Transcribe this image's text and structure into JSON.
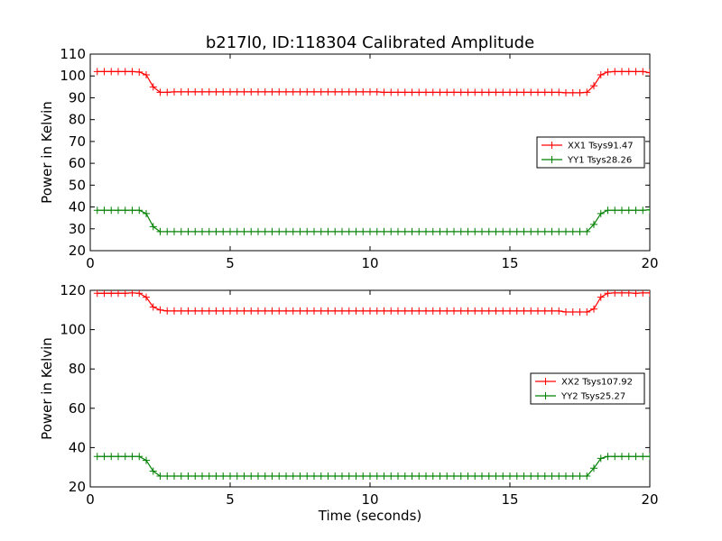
{
  "chart_data": [
    {
      "type": "line",
      "title": "b217l0, ID:118304 Calibrated Amplitude",
      "xlabel": "",
      "ylabel": "Power in Kelvin",
      "xlim": [
        0,
        20
      ],
      "ylim": [
        20,
        110
      ],
      "xticks": [
        0,
        5,
        10,
        15,
        20
      ],
      "yticks": [
        20,
        30,
        40,
        50,
        60,
        70,
        80,
        90,
        100,
        110
      ],
      "grid": false,
      "legend_position": "right",
      "series": [
        {
          "name": "XX1 Tsys91.47",
          "color": "#ff0000",
          "x": [
            0.25,
            0.5,
            0.75,
            1.0,
            1.25,
            1.5,
            1.75,
            2.0,
            2.25,
            2.5,
            2.75,
            3.0,
            3.25,
            3.5,
            3.75,
            4.0,
            4.25,
            4.5,
            4.75,
            5.0,
            5.25,
            5.5,
            5.75,
            6.0,
            6.25,
            6.5,
            6.75,
            7.0,
            7.25,
            7.5,
            7.75,
            8.0,
            8.25,
            8.5,
            8.75,
            9.0,
            9.25,
            9.5,
            9.75,
            10.0,
            10.25,
            10.5,
            10.75,
            11.0,
            11.25,
            11.5,
            11.75,
            12.0,
            12.25,
            12.5,
            12.75,
            13.0,
            13.25,
            13.5,
            13.75,
            14.0,
            14.25,
            14.5,
            14.75,
            15.0,
            15.25,
            15.5,
            15.75,
            16.0,
            16.25,
            16.5,
            16.75,
            17.0,
            17.25,
            17.5,
            17.75,
            18.0,
            18.25,
            18.5,
            18.75,
            19.0,
            19.25,
            19.5,
            19.75,
            20.0
          ],
          "y": [
            102,
            102,
            102,
            102,
            102,
            102,
            101.8,
            100.5,
            95,
            92.5,
            92.5,
            92.7,
            92.7,
            92.7,
            92.7,
            92.7,
            92.7,
            92.7,
            92.7,
            92.7,
            92.7,
            92.7,
            92.7,
            92.7,
            92.7,
            92.7,
            92.7,
            92.7,
            92.7,
            92.7,
            92.7,
            92.7,
            92.7,
            92.7,
            92.7,
            92.7,
            92.7,
            92.7,
            92.7,
            92.7,
            92.7,
            92.5,
            92.5,
            92.5,
            92.5,
            92.5,
            92.5,
            92.5,
            92.5,
            92.5,
            92.5,
            92.5,
            92.5,
            92.5,
            92.5,
            92.5,
            92.5,
            92.5,
            92.5,
            92.5,
            92.5,
            92.5,
            92.5,
            92.5,
            92.5,
            92.5,
            92.5,
            92.3,
            92.3,
            92.3,
            92.5,
            95.5,
            100.5,
            101.8,
            102,
            102,
            102,
            102,
            102,
            101.5
          ]
        },
        {
          "name": "YY1 Tsys28.26",
          "color": "#008000",
          "x": [
            0.25,
            0.5,
            0.75,
            1.0,
            1.25,
            1.5,
            1.75,
            2.0,
            2.25,
            2.5,
            2.75,
            3.0,
            3.25,
            3.5,
            3.75,
            4.0,
            4.25,
            4.5,
            4.75,
            5.0,
            5.25,
            5.5,
            5.75,
            6.0,
            6.25,
            6.5,
            6.75,
            7.0,
            7.25,
            7.5,
            7.75,
            8.0,
            8.25,
            8.5,
            8.75,
            9.0,
            9.25,
            9.5,
            9.75,
            10.0,
            10.25,
            10.5,
            10.75,
            11.0,
            11.25,
            11.5,
            11.75,
            12.0,
            12.25,
            12.5,
            12.75,
            13.0,
            13.25,
            13.5,
            13.75,
            14.0,
            14.25,
            14.5,
            14.75,
            15.0,
            15.25,
            15.5,
            15.75,
            16.0,
            16.25,
            16.5,
            16.75,
            17.0,
            17.25,
            17.5,
            17.75,
            18.0,
            18.25,
            18.5,
            18.75,
            19.0,
            19.25,
            19.5,
            19.75,
            20.0
          ],
          "y": [
            38.5,
            38.5,
            38.5,
            38.5,
            38.5,
            38.5,
            38.5,
            37,
            31,
            28.7,
            28.7,
            28.7,
            28.7,
            28.7,
            28.7,
            28.7,
            28.7,
            28.7,
            28.7,
            28.7,
            28.7,
            28.7,
            28.7,
            28.7,
            28.7,
            28.7,
            28.7,
            28.7,
            28.7,
            28.7,
            28.7,
            28.7,
            28.7,
            28.7,
            28.7,
            28.7,
            28.7,
            28.7,
            28.7,
            28.7,
            28.7,
            28.7,
            28.7,
            28.7,
            28.7,
            28.7,
            28.7,
            28.7,
            28.7,
            28.7,
            28.7,
            28.7,
            28.7,
            28.7,
            28.7,
            28.7,
            28.7,
            28.7,
            28.7,
            28.7,
            28.7,
            28.7,
            28.7,
            28.7,
            28.7,
            28.7,
            28.7,
            28.7,
            28.7,
            28.7,
            28.7,
            32,
            37,
            38.5,
            38.5,
            38.5,
            38.5,
            38.5,
            38.5,
            38.7
          ]
        }
      ]
    },
    {
      "type": "line",
      "title": "",
      "xlabel": "Time (seconds)",
      "ylabel": "Power in Kelvin",
      "xlim": [
        0,
        20
      ],
      "ylim": [
        20,
        120
      ],
      "xticks": [
        0,
        5,
        10,
        15,
        20
      ],
      "yticks": [
        20,
        40,
        60,
        80,
        100,
        120
      ],
      "grid": false,
      "legend_position": "right",
      "series": [
        {
          "name": "XX2 Tsys107.92",
          "color": "#ff0000",
          "x": [
            0.25,
            0.5,
            0.75,
            1.0,
            1.25,
            1.5,
            1.75,
            2.0,
            2.25,
            2.5,
            2.75,
            3.0,
            3.25,
            3.5,
            3.75,
            4.0,
            4.25,
            4.5,
            4.75,
            5.0,
            5.25,
            5.5,
            5.75,
            6.0,
            6.25,
            6.5,
            6.75,
            7.0,
            7.25,
            7.5,
            7.75,
            8.0,
            8.25,
            8.5,
            8.75,
            9.0,
            9.25,
            9.5,
            9.75,
            10.0,
            10.25,
            10.5,
            10.75,
            11.0,
            11.25,
            11.5,
            11.75,
            12.0,
            12.25,
            12.5,
            12.75,
            13.0,
            13.25,
            13.5,
            13.75,
            14.0,
            14.25,
            14.5,
            14.75,
            15.0,
            15.25,
            15.5,
            15.75,
            16.0,
            16.25,
            16.5,
            16.75,
            17.0,
            17.25,
            17.5,
            17.75,
            18.0,
            18.25,
            18.5,
            18.75,
            19.0,
            19.25,
            19.5,
            19.75,
            20.0
          ],
          "y": [
            118.5,
            118.5,
            118.5,
            118.5,
            118.5,
            118.7,
            118.5,
            116.5,
            111.5,
            110,
            109.5,
            109.5,
            109.5,
            109.5,
            109.5,
            109.5,
            109.5,
            109.5,
            109.5,
            109.5,
            109.5,
            109.5,
            109.5,
            109.5,
            109.5,
            109.5,
            109.5,
            109.5,
            109.5,
            109.5,
            109.5,
            109.5,
            109.5,
            109.5,
            109.5,
            109.5,
            109.5,
            109.5,
            109.5,
            109.5,
            109.5,
            109.5,
            109.5,
            109.5,
            109.5,
            109.5,
            109.5,
            109.5,
            109.5,
            109.5,
            109.5,
            109.5,
            109.5,
            109.5,
            109.5,
            109.5,
            109.5,
            109.5,
            109.5,
            109.5,
            109.5,
            109.5,
            109.5,
            109.5,
            109.5,
            109.5,
            109.5,
            109,
            109,
            109,
            109,
            110.5,
            116.5,
            118.5,
            118.7,
            118.7,
            118.7,
            118.5,
            118.7,
            118.7
          ]
        },
        {
          "name": "YY2 Tsys25.27",
          "color": "#008000",
          "x": [
            0.25,
            0.5,
            0.75,
            1.0,
            1.25,
            1.5,
            1.75,
            2.0,
            2.25,
            2.5,
            2.75,
            3.0,
            3.25,
            3.5,
            3.75,
            4.0,
            4.25,
            4.5,
            4.75,
            5.0,
            5.25,
            5.5,
            5.75,
            6.0,
            6.25,
            6.5,
            6.75,
            7.0,
            7.25,
            7.5,
            7.75,
            8.0,
            8.25,
            8.5,
            8.75,
            9.0,
            9.25,
            9.5,
            9.75,
            10.0,
            10.25,
            10.5,
            10.75,
            11.0,
            11.25,
            11.5,
            11.75,
            12.0,
            12.25,
            12.5,
            12.75,
            13.0,
            13.25,
            13.5,
            13.75,
            14.0,
            14.25,
            14.5,
            14.75,
            15.0,
            15.25,
            15.5,
            15.75,
            16.0,
            16.25,
            16.5,
            16.75,
            17.0,
            17.25,
            17.5,
            17.75,
            18.0,
            18.25,
            18.5,
            18.75,
            19.0,
            19.25,
            19.5,
            19.75,
            20.0
          ],
          "y": [
            35.5,
            35.5,
            35.5,
            35.5,
            35.5,
            35.5,
            35.5,
            33.5,
            28,
            25.5,
            25.5,
            25.5,
            25.5,
            25.5,
            25.5,
            25.5,
            25.5,
            25.5,
            25.5,
            25.5,
            25.5,
            25.5,
            25.5,
            25.5,
            25.5,
            25.5,
            25.5,
            25.5,
            25.5,
            25.5,
            25.5,
            25.5,
            25.5,
            25.5,
            25.5,
            25.5,
            25.5,
            25.5,
            25.5,
            25.5,
            25.5,
            25.5,
            25.5,
            25.5,
            25.5,
            25.5,
            25.5,
            25.5,
            25.5,
            25.5,
            25.5,
            25.5,
            25.5,
            25.5,
            25.5,
            25.5,
            25.5,
            25.5,
            25.5,
            25.5,
            25.5,
            25.5,
            25.5,
            25.5,
            25.5,
            25.5,
            25.5,
            25.5,
            25.5,
            25.5,
            25.5,
            29.5,
            34.5,
            35.5,
            35.5,
            35.5,
            35.5,
            35.5,
            35.5,
            35.5
          ]
        }
      ]
    }
  ]
}
